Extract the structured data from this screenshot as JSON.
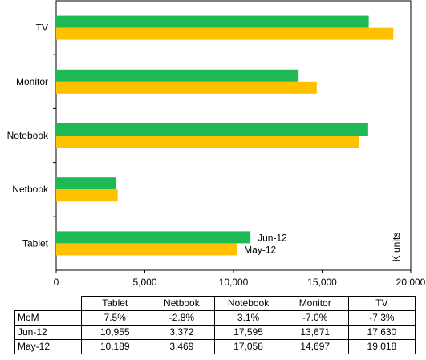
{
  "chart_data": {
    "type": "bar",
    "orientation": "horizontal",
    "categories": [
      "Tablet",
      "Netbook",
      "Notebook",
      "Monitor",
      "TV"
    ],
    "series": [
      {
        "name": "Jun-12",
        "color": "#1db954",
        "values": [
          10955,
          3372,
          17595,
          13671,
          17630
        ]
      },
      {
        "name": "May-12",
        "color": "#ffc000",
        "values": [
          10189,
          3469,
          17058,
          14697,
          19018
        ]
      }
    ],
    "xlim": [
      0,
      20000
    ],
    "xticks": [
      "0",
      "5,000",
      "10,000",
      "15,000",
      "20,000"
    ],
    "ylabel": "K units",
    "legend": "bar-labels",
    "grid": false
  },
  "table": {
    "columns": [
      "Tablet",
      "Netbook",
      "Notebook",
      "Monitor",
      "TV"
    ],
    "rows": [
      {
        "label": "MoM",
        "cells": [
          "7.5%",
          "-2.8%",
          "3.1%",
          "-7.0%",
          "-7.3%"
        ]
      },
      {
        "label": "Jun-12",
        "cells": [
          "10,955",
          "3,372",
          "17,595",
          "13,671",
          "17,630"
        ]
      },
      {
        "label": "May-12",
        "cells": [
          "10,189",
          "3,469",
          "17,058",
          "14,697",
          "19,018"
        ]
      }
    ]
  }
}
